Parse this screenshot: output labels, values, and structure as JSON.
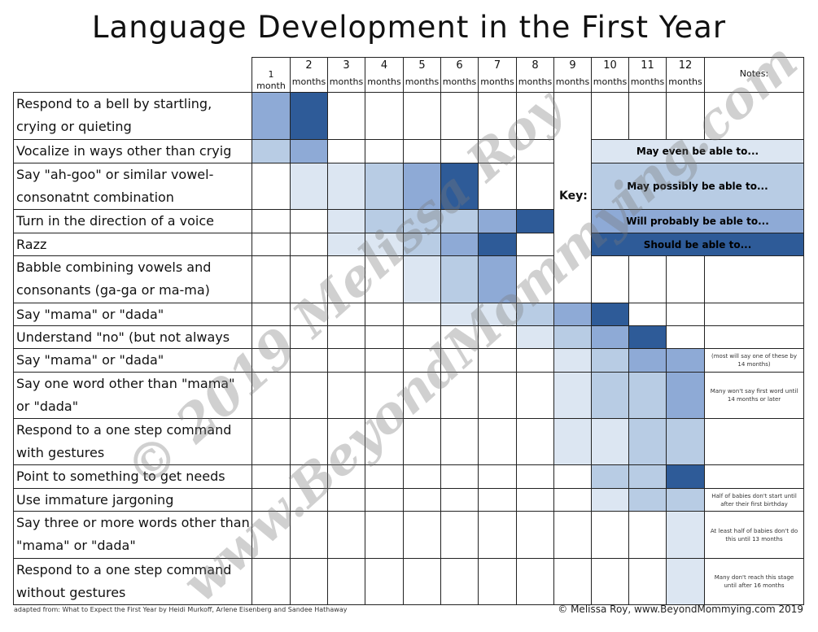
{
  "title": "Language Development in the First Year",
  "months": [
    {
      "num": "",
      "label": "1 month"
    },
    {
      "num": "2",
      "label": "months"
    },
    {
      "num": "3",
      "label": "months"
    },
    {
      "num": "4",
      "label": "months"
    },
    {
      "num": "5",
      "label": "months"
    },
    {
      "num": "6",
      "label": "months"
    },
    {
      "num": "7",
      "label": "months"
    },
    {
      "num": "8",
      "label": "months"
    },
    {
      "num": "9",
      "label": "months"
    },
    {
      "num": "10",
      "label": "months"
    },
    {
      "num": "11",
      "label": "months"
    },
    {
      "num": "12",
      "label": "months"
    }
  ],
  "notes_header": "Notes:",
  "colors": {
    "level1": "#dce6f2",
    "level2": "#b8cce4",
    "level3": "#8eaad6",
    "level4": "#2e5b98"
  },
  "milestones": [
    {
      "label": "Respond to a bell by startling, crying or quieting",
      "levels": [
        3,
        4,
        0,
        0,
        0,
        0,
        0,
        0,
        0,
        0,
        0,
        0
      ],
      "note": ""
    },
    {
      "label": "Vocalize in ways other than cryig",
      "levels": [
        2,
        3,
        0,
        0,
        0,
        0,
        0,
        0,
        0,
        0,
        0,
        0
      ],
      "note": ""
    },
    {
      "label": "Say \"ah-goo\" or similar vowel-consonatnt combination",
      "levels": [
        0,
        1,
        1,
        2,
        3,
        4,
        0,
        0,
        0,
        0,
        0,
        0
      ],
      "note": ""
    },
    {
      "label": "Turn in the direction of a voice",
      "levels": [
        0,
        0,
        1,
        2,
        2,
        2,
        3,
        4,
        0,
        0,
        0,
        0
      ],
      "note": ""
    },
    {
      "label": "Razz",
      "levels": [
        0,
        0,
        1,
        1,
        2,
        3,
        4,
        0,
        0,
        0,
        0,
        0
      ],
      "note": ""
    },
    {
      "label": "Babble combining vowels and consonants (ga-ga or ma-ma)",
      "levels": [
        0,
        0,
        0,
        0,
        1,
        2,
        3,
        0,
        0,
        0,
        0,
        0
      ],
      "note": ""
    },
    {
      "label": "Say \"mama\" or \"dada\" indiscrimitely",
      "levels": [
        0,
        0,
        0,
        0,
        0,
        1,
        1,
        2,
        3,
        4,
        0,
        0
      ],
      "note": ""
    },
    {
      "label": "Understand \"no\" (but not always obey)",
      "levels": [
        0,
        0,
        0,
        0,
        0,
        0,
        0,
        1,
        2,
        3,
        4,
        0
      ],
      "note": ""
    },
    {
      "label": "Say \"mama\" or \"dada\" discriminitely",
      "levels": [
        0,
        0,
        0,
        0,
        0,
        0,
        0,
        0,
        1,
        2,
        3,
        3
      ],
      "note": "(most will say one of these by 14 months)"
    },
    {
      "label": "Say one word other than \"mama\" or \"dada\"",
      "levels": [
        0,
        0,
        0,
        0,
        0,
        0,
        0,
        0,
        1,
        2,
        2,
        3
      ],
      "note": "Many won't say first word until 14 months or later"
    },
    {
      "label": "Respond to a one step command with gestures",
      "levels": [
        0,
        0,
        0,
        0,
        0,
        0,
        0,
        0,
        1,
        1,
        2,
        2
      ],
      "note": ""
    },
    {
      "label": "Point to something to get needs met",
      "levels": [
        0,
        0,
        0,
        0,
        0,
        0,
        0,
        0,
        0,
        2,
        2,
        4
      ],
      "note": ""
    },
    {
      "label": "Use immature jargoning",
      "levels": [
        0,
        0,
        0,
        0,
        0,
        0,
        0,
        0,
        0,
        1,
        2,
        2
      ],
      "note": "Half of babies don't start until after their first birthday"
    },
    {
      "label": "Say three or more words other than \"mama\" or \"dada\"",
      "levels": [
        0,
        0,
        0,
        0,
        0,
        0,
        0,
        0,
        0,
        0,
        0,
        1
      ],
      "note": "At least half of babies don't do this until 13 months"
    },
    {
      "label": "Respond to a one step command without gestures",
      "levels": [
        0,
        0,
        0,
        0,
        0,
        0,
        0,
        0,
        0,
        0,
        0,
        1
      ],
      "note": "Many don't reach this stage until after 16 months"
    }
  ],
  "key": {
    "label": "Key:",
    "items": [
      {
        "text": "May even be able to...",
        "level": 1
      },
      {
        "text": "May possibly be able to...",
        "level": 2
      },
      {
        "text": "Will probably be able to...",
        "level": 3
      },
      {
        "text": "Should be able to...",
        "level": 4
      }
    ]
  },
  "footer_left": "adapted from: What to Expect the First Year by Heidi Murkoff, Arlene Eisenberg and Sandee Hathaway",
  "footer_right": "© Melissa Roy, www.BeyondMommying.com 2019",
  "watermark": [
    "© 2019 Melissa Roy",
    "www.BeyondMommying.com"
  ]
}
